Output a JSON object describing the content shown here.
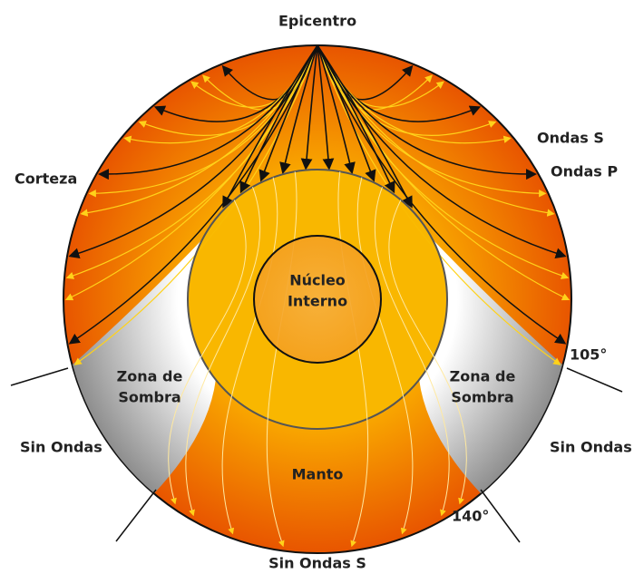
{
  "epicenter": "Epicentro",
  "waves_s": "Ondas S",
  "waves_p": "Ondas P",
  "crust": "Corteza",
  "inner_core": {
    "lines": [
      "Núcleo",
      "Interno"
    ]
  },
  "shadow_left": {
    "lines": [
      "Zona de",
      "Sombra"
    ]
  },
  "shadow_right": {
    "lines": [
      "Zona de",
      "Sombra"
    ]
  },
  "angle_105": "105°",
  "angle_140": "140°",
  "no_waves_left": "Sin Ondas",
  "no_waves_right": "Sin Ondas",
  "mantle": "Manto",
  "no_s_waves": "Sin Ondas S"
}
